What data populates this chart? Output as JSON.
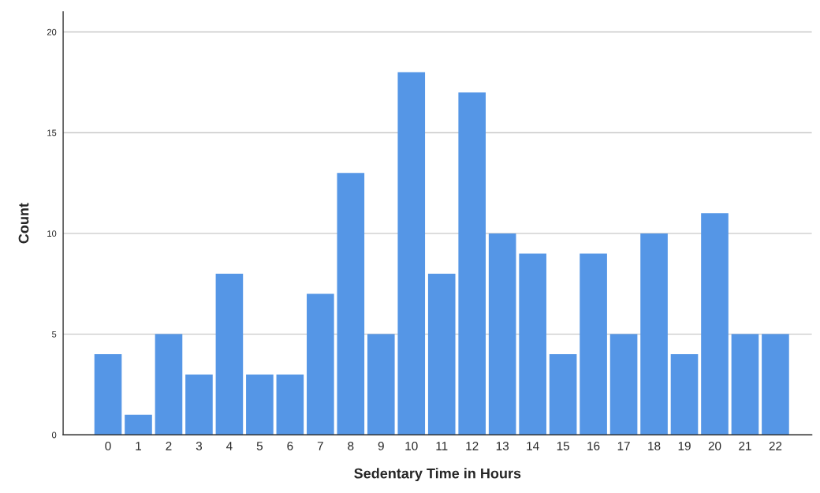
{
  "chart_data": {
    "type": "bar",
    "xlabel": "Sedentary Time in Hours",
    "ylabel": "Count",
    "categories": [
      "0",
      "1",
      "2",
      "3",
      "4",
      "5",
      "6",
      "7",
      "8",
      "9",
      "10",
      "11",
      "12",
      "13",
      "14",
      "15",
      "16",
      "17",
      "18",
      "19",
      "20",
      "21",
      "22"
    ],
    "values": [
      4,
      1,
      5,
      3,
      8,
      3,
      3,
      7,
      13,
      5,
      18,
      8,
      17,
      10,
      9,
      4,
      9,
      5,
      10,
      4,
      11,
      5,
      5
    ],
    "color": "#5596e6",
    "ylim": [
      0,
      21
    ],
    "yticks": [
      0,
      5,
      10,
      15,
      20
    ],
    "grid": "y"
  }
}
